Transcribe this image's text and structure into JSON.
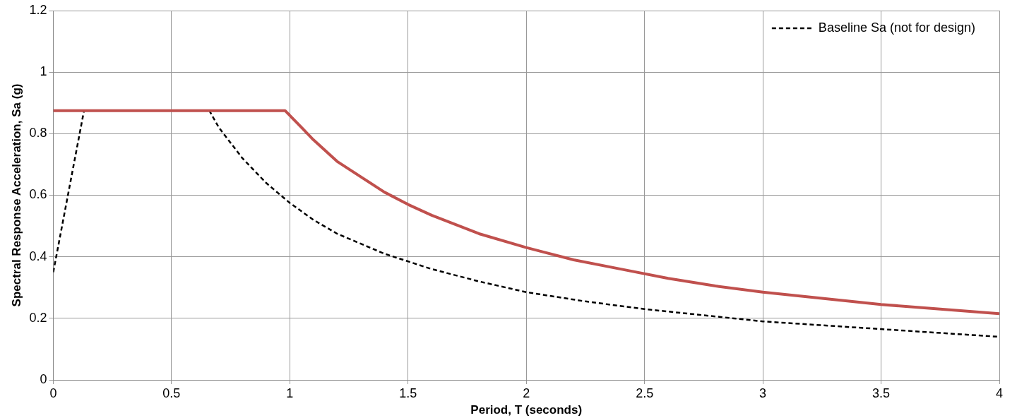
{
  "chart_data": {
    "type": "line",
    "xlabel": "Period, T (seconds)",
    "ylabel": "Spectral Response Acceleration, Sa (g)",
    "xlim": [
      0,
      4
    ],
    "xticks": [
      0,
      0.5,
      1,
      1.5,
      2,
      2.5,
      3,
      3.5,
      4
    ],
    "ylim": [
      0,
      1.2
    ],
    "yticks": [
      0,
      0.2,
      0.4,
      0.6,
      0.8,
      1,
      1.2
    ],
    "grid": true,
    "legend": "top right",
    "marker": "none",
    "series": [
      {
        "color": "#c0504d",
        "line_style": "solid",
        "x": [
          0,
          0.98,
          1.05,
          1.1,
          1.2,
          1.3,
          1.4,
          1.5,
          1.6,
          1.7,
          1.8,
          2,
          2.2,
          2.4,
          2.6,
          2.8,
          3,
          3.25,
          3.5,
          3.75,
          4
        ],
        "values": [
          0.875,
          0.875,
          0.82,
          0.78,
          0.71,
          0.66,
          0.61,
          0.57,
          0.535,
          0.505,
          0.475,
          0.43,
          0.39,
          0.36,
          0.33,
          0.305,
          0.285,
          0.265,
          0.245,
          0.23,
          0.215
        ]
      },
      {
        "name": "Baseline Sa (not for design)",
        "color": "#000000",
        "line_style": "dashed",
        "x": [
          0,
          0.13,
          0.66,
          0.7,
          0.8,
          0.9,
          1,
          1.1,
          1.2,
          1.4,
          1.6,
          1.8,
          2,
          2.25,
          2.5,
          2.75,
          3,
          3.5,
          4
        ],
        "values": [
          0.35,
          0.875,
          0.875,
          0.82,
          0.72,
          0.64,
          0.575,
          0.52,
          0.475,
          0.41,
          0.36,
          0.32,
          0.285,
          0.255,
          0.23,
          0.21,
          0.19,
          0.165,
          0.14
        ]
      }
    ]
  }
}
